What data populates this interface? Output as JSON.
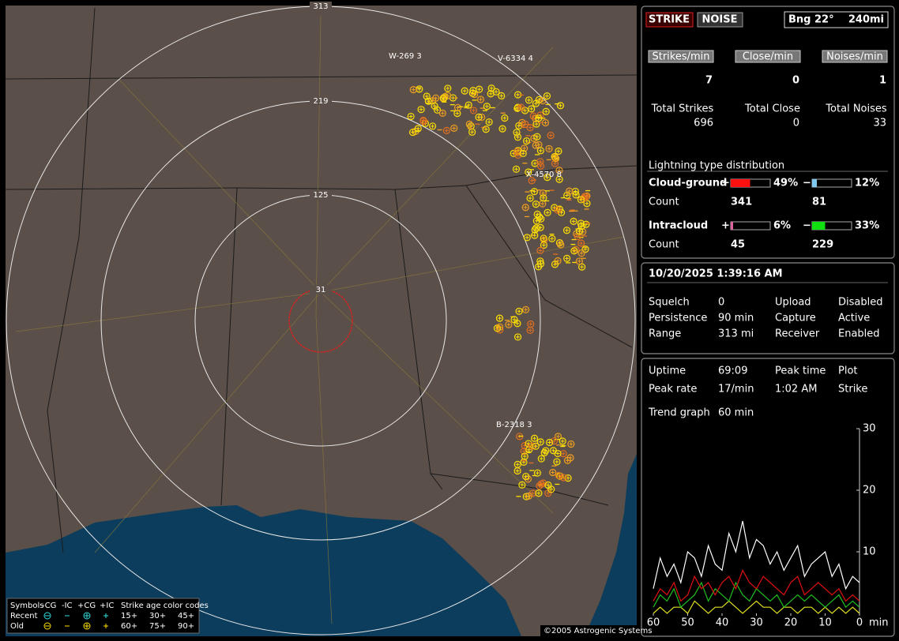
{
  "toolbar": {
    "strike": "STRIKE",
    "noise": "NOISE",
    "bearing": "Bng 22°",
    "range": "240mi"
  },
  "rates": [
    {
      "label": "Strikes/min",
      "value": 7
    },
    {
      "label": "Close/min",
      "value": 0
    },
    {
      "label": "Noises/min",
      "value": 1
    }
  ],
  "totals": [
    {
      "label": "Total Strikes",
      "value": 696
    },
    {
      "label": "Total Close",
      "value": 0
    },
    {
      "label": "Total Noises",
      "value": 33
    }
  ],
  "distribution": {
    "title": "Lightning type distribution",
    "rows": [
      {
        "name": "Cloud-ground",
        "count_label": "Count",
        "pos": {
          "sign": "+",
          "value": 49,
          "label": "49%",
          "color": "#ff1010",
          "count": 341
        },
        "neg": {
          "sign": "−",
          "value": 12,
          "label": "12%",
          "color": "#7fc8f0",
          "count": 81
        }
      },
      {
        "name": "Intracloud",
        "count_label": "Count",
        "pos": {
          "sign": "+",
          "value": 6,
          "label": "6%",
          "color": "#e060a0",
          "count": 45
        },
        "neg": {
          "sign": "−",
          "value": 33,
          "label": "33%",
          "color": "#10e010",
          "count": 229
        }
      }
    ]
  },
  "status": {
    "datetime": "10/20/2025 1:39:16 AM",
    "rows": [
      [
        "Squelch",
        "0",
        "Upload",
        "Disabled"
      ],
      [
        "Persistence",
        "90 min",
        "Capture",
        "Active"
      ],
      [
        "Range",
        "313 mi",
        "Receiver",
        "Enabled"
      ]
    ]
  },
  "stats": {
    "rows": [
      [
        "Uptime",
        "69:09",
        "Peak time",
        "Plot"
      ],
      [
        "Peak rate",
        "17/min",
        "1:02 AM",
        "Strike"
      ]
    ],
    "trend_label": "Trend graph",
    "trend_value": "60 min"
  },
  "chart_data": {
    "type": "line",
    "x_unit": "min",
    "x": [
      60,
      58,
      56,
      54,
      52,
      50,
      48,
      46,
      44,
      42,
      40,
      38,
      36,
      34,
      32,
      30,
      28,
      26,
      24,
      22,
      20,
      18,
      16,
      14,
      12,
      10,
      8,
      6,
      4,
      2,
      0
    ],
    "xlim": [
      60,
      0
    ],
    "xticks": [
      60,
      50,
      40,
      30,
      20,
      10,
      0
    ],
    "ylim": [
      0,
      30
    ],
    "yticks": [
      10,
      20,
      30
    ],
    "series": [
      {
        "color": "#ffffff",
        "values": [
          4,
          9,
          6,
          8,
          5,
          10,
          9,
          6,
          11,
          8,
          7,
          13,
          10,
          15,
          9,
          12,
          11,
          8,
          10,
          7,
          9,
          11,
          6,
          8,
          9,
          10,
          6,
          8,
          4,
          6,
          5
        ]
      },
      {
        "color": "#e01010",
        "values": [
          2,
          4,
          3,
          5,
          2,
          3,
          6,
          4,
          5,
          3,
          5,
          6,
          4,
          7,
          5,
          4,
          6,
          5,
          4,
          3,
          5,
          6,
          3,
          4,
          5,
          4,
          3,
          4,
          2,
          3,
          2
        ]
      },
      {
        "color": "#20c020",
        "values": [
          1,
          3,
          2,
          4,
          1,
          2,
          3,
          5,
          2,
          4,
          3,
          2,
          5,
          3,
          2,
          4,
          3,
          2,
          3,
          1,
          2,
          3,
          2,
          3,
          2,
          1,
          2,
          3,
          1,
          2,
          1
        ]
      },
      {
        "color": "#e0e020",
        "values": [
          0,
          1,
          0,
          1,
          1,
          0,
          2,
          1,
          0,
          1,
          1,
          2,
          1,
          0,
          1,
          2,
          1,
          1,
          0,
          1,
          1,
          0,
          1,
          1,
          0,
          1,
          0,
          1,
          0,
          1,
          0
        ]
      }
    ]
  },
  "map": {
    "rings": [
      "313",
      "219",
      "125",
      "31"
    ],
    "clusters": [
      "W-269 3",
      "V-6334 4",
      "X-4570 8",
      "B-2318 3"
    ],
    "legend": {
      "header": [
        "Symbols",
        "-CG",
        "-IC",
        "+CG",
        "+IC"
      ],
      "age_title": "Strike age color codes",
      "rows": [
        {
          "label": "Recent",
          "ages": [
            "15+",
            "30+",
            "45+"
          ]
        },
        {
          "label": "Old",
          "ages": [
            "60+",
            "75+",
            "90+"
          ]
        }
      ]
    },
    "copyright": "©2005 Astrogenic Systems"
  }
}
